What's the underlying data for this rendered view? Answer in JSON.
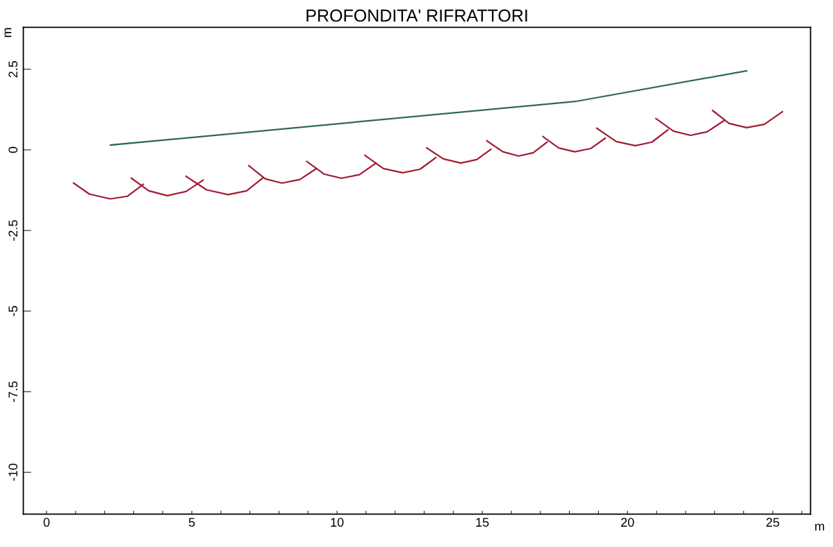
{
  "chart_data": {
    "type": "line",
    "title": "PROFONDITA' RIFRATTORI",
    "xlabel": "m",
    "ylabel": "m",
    "xlim": [
      -0.8,
      26.3
    ],
    "ylim": [
      -11.3,
      3.8
    ],
    "xticks": [
      0,
      {
        "value": 1,
        "label": null
      },
      {
        "value": 2,
        "label": null
      },
      {
        "value": 3,
        "label": null
      },
      {
        "value": 4,
        "label": null
      },
      5,
      {
        "value": 6,
        "label": null
      },
      {
        "value": 7,
        "label": null
      },
      {
        "value": 8,
        "label": null
      },
      {
        "value": 9,
        "label": null
      },
      10,
      {
        "value": 11,
        "label": null
      },
      {
        "value": 12,
        "label": null
      },
      {
        "value": 13,
        "label": null
      },
      {
        "value": 14,
        "label": null
      },
      15,
      {
        "value": 16,
        "label": null
      },
      {
        "value": 17,
        "label": null
      },
      {
        "value": 18,
        "label": null
      },
      {
        "value": 19,
        "label": null
      },
      20,
      {
        "value": 21,
        "label": null
      },
      {
        "value": 22,
        "label": null
      },
      {
        "value": 23,
        "label": null
      },
      {
        "value": 24,
        "label": null
      },
      25,
      {
        "value": 26,
        "label": null
      }
    ],
    "yticks": [
      -10,
      -7.5,
      -5,
      -2.5,
      0,
      2.5
    ],
    "grid": false,
    "marker": "none",
    "line_style": "solid",
    "series": [
      {
        "color": "#2e6b4a",
        "x": [
          2.2,
          18.2,
          24.1
        ],
        "values": [
          0.15,
          1.5,
          2.45
        ]
      },
      {
        "color": "#a01c32",
        "x": [
          0.93,
          1.47,
          2.19,
          2.78,
          3.33
        ],
        "values": [
          -1.03,
          -1.37,
          -1.52,
          -1.44,
          -1.07
        ]
      },
      {
        "color": "#a01c32",
        "x": [
          2.92,
          3.52,
          4.16,
          4.8,
          5.39
        ],
        "values": [
          -0.88,
          -1.27,
          -1.42,
          -1.29,
          -0.94
        ]
      },
      {
        "color": "#a01c32",
        "x": [
          4.8,
          5.51,
          6.25,
          6.89,
          7.46
        ],
        "values": [
          -0.82,
          -1.24,
          -1.39,
          -1.27,
          -0.86
        ]
      },
      {
        "color": "#a01c32",
        "x": [
          6.96,
          7.53,
          8.1,
          8.72,
          9.29
        ],
        "values": [
          -0.49,
          -0.9,
          -1.03,
          -0.92,
          -0.58
        ]
      },
      {
        "color": "#a01c32",
        "x": [
          8.96,
          9.55,
          10.15,
          10.77,
          11.34
        ],
        "values": [
          -0.36,
          -0.75,
          -0.88,
          -0.77,
          -0.41
        ]
      },
      {
        "color": "#a01c32",
        "x": [
          10.96,
          11.6,
          12.26,
          12.86,
          13.4
        ],
        "values": [
          -0.17,
          -0.58,
          -0.71,
          -0.6,
          -0.24
        ]
      },
      {
        "color": "#a01c32",
        "x": [
          13.09,
          13.66,
          14.26,
          14.81,
          15.3
        ],
        "values": [
          0.06,
          -0.28,
          -0.41,
          -0.3,
          0.02
        ]
      },
      {
        "color": "#a01c32",
        "x": [
          15.16,
          15.71,
          16.25,
          16.75,
          17.23
        ],
        "values": [
          0.28,
          -0.06,
          -0.19,
          -0.09,
          0.24
        ]
      },
      {
        "color": "#a01c32",
        "x": [
          17.09,
          17.63,
          18.18,
          18.73,
          19.23
        ],
        "values": [
          0.41,
          0.06,
          -0.06,
          0.04,
          0.36
        ]
      },
      {
        "color": "#a01c32",
        "x": [
          18.94,
          19.61,
          20.27,
          20.84,
          21.39
        ],
        "values": [
          0.67,
          0.26,
          0.13,
          0.24,
          0.62
        ]
      },
      {
        "color": "#a01c32",
        "x": [
          20.98,
          21.58,
          22.17,
          22.74,
          23.31
        ],
        "values": [
          0.97,
          0.58,
          0.45,
          0.56,
          0.9
        ]
      },
      {
        "color": "#a01c32",
        "x": [
          22.93,
          23.5,
          24.1,
          24.71,
          25.33
        ],
        "values": [
          1.22,
          0.82,
          0.69,
          0.79,
          1.18
        ]
      }
    ]
  }
}
